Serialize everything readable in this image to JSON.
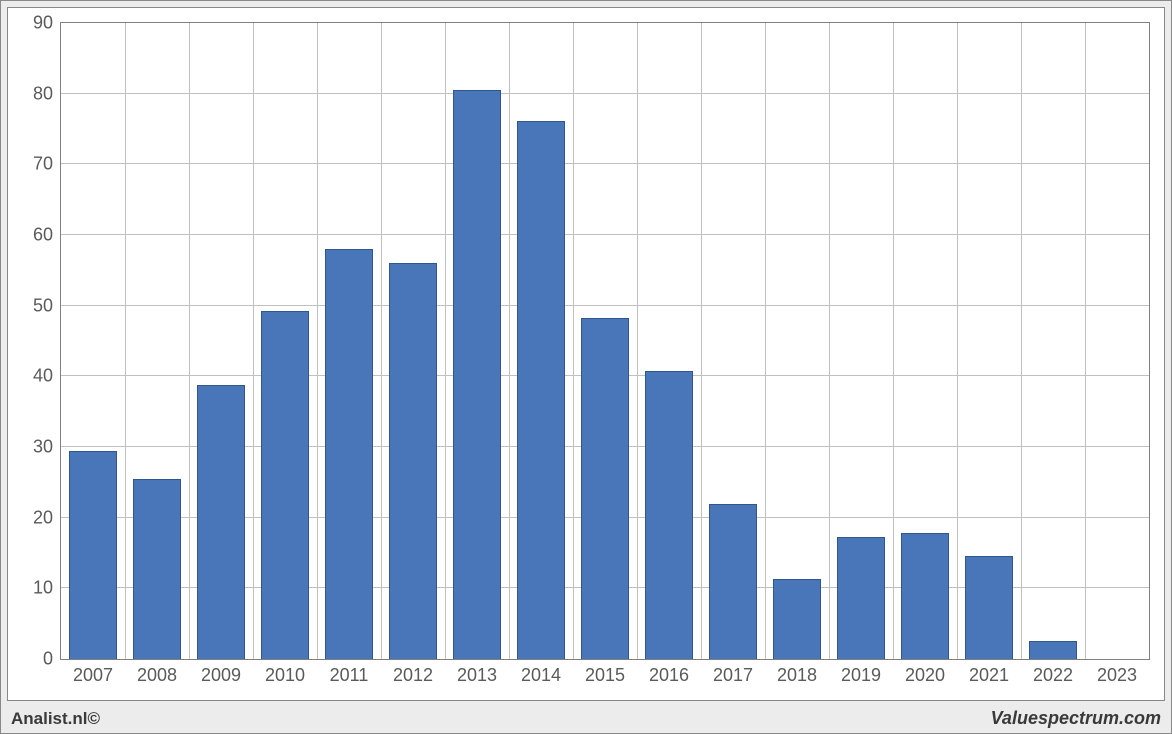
{
  "chart": {
    "type": "bar",
    "categories": [
      "2007",
      "2008",
      "2009",
      "2010",
      "2011",
      "2012",
      "2013",
      "2014",
      "2015",
      "2016",
      "2017",
      "2018",
      "2019",
      "2020",
      "2021",
      "2022",
      "2023"
    ],
    "values": [
      29.5,
      25.5,
      38.8,
      49.2,
      58.0,
      56.0,
      80.5,
      76.2,
      48.3,
      40.8,
      22.0,
      11.3,
      17.3,
      17.8,
      14.6,
      2.5,
      0
    ],
    "bar_color": "#4876b9",
    "bar_border_color": "#2e578f",
    "bar_width_ratio": 0.75,
    "ylim": [
      0,
      90
    ],
    "ytick_step": 10,
    "background_color": "#ffffff",
    "grid_color": "#c0c0c0",
    "border_color": "#808080",
    "tick_fontsize": 18,
    "tick_color": "#5a5a5a",
    "outer_bg": "#ececec"
  },
  "footer": {
    "left": "Analist.nl©",
    "right": "Valuespectrum.com",
    "left_fontsize": 17,
    "right_fontsize": 18,
    "color": "#3a3a3a"
  }
}
